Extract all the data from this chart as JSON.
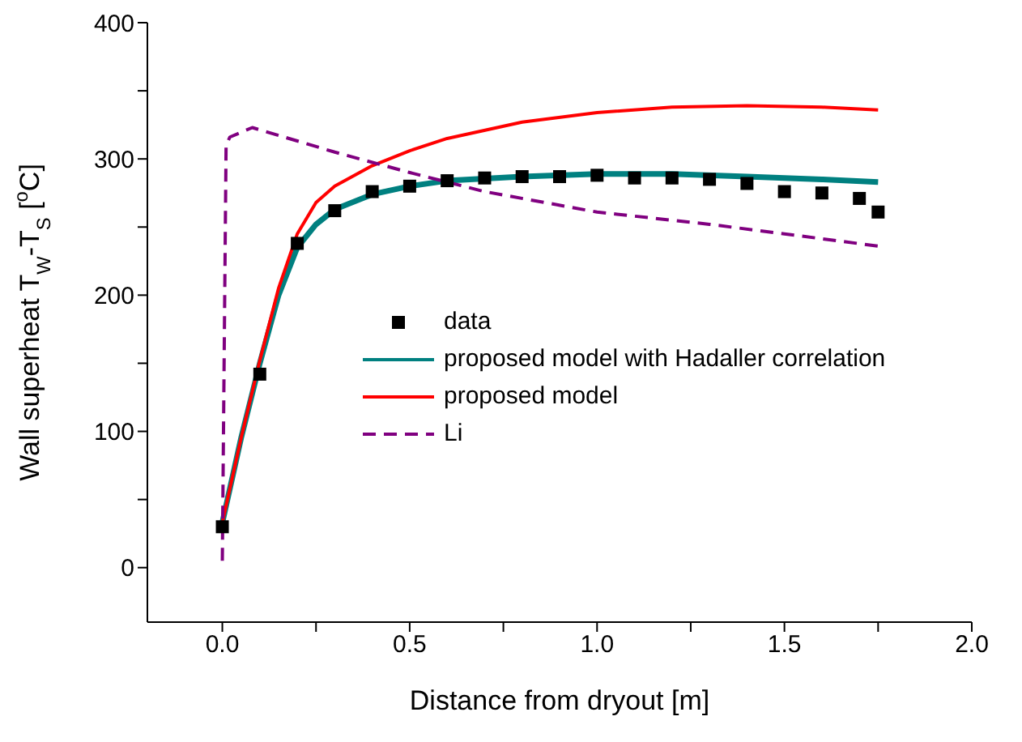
{
  "chart_data": {
    "type": "line",
    "xlabel": "Distance from dryout [m]",
    "ylabel": "Wall superheat T$_{W}$-T$_{S}$ [$^{o}$C]",
    "xlim": [
      -0.2,
      2.0
    ],
    "ylim": [
      -40,
      400
    ],
    "xticks": [
      {
        "value": 0,
        "label": "0.0"
      },
      {
        "value": 0.25,
        "label": null
      },
      {
        "value": 0.5,
        "label": "0.5"
      },
      {
        "value": 0.75,
        "label": null
      },
      {
        "value": 1.0,
        "label": "1.0"
      },
      {
        "value": 1.25,
        "label": null
      },
      {
        "value": 1.5,
        "label": "1.5"
      },
      {
        "value": 1.75,
        "label": null
      },
      {
        "value": 2.0,
        "label": "2.0"
      }
    ],
    "yticks": [
      0,
      {
        "value": 50,
        "label": null
      },
      100,
      {
        "value": 150,
        "label": null
      },
      200,
      {
        "value": 250,
        "label": null
      },
      300,
      {
        "value": 350,
        "label": null
      },
      400
    ],
    "grid": false,
    "legend": "center",
    "series": [
      {
        "name": "data",
        "type": "scatter",
        "marker": "square",
        "color": "#000000",
        "x": [
          0,
          0.1,
          0.2,
          0.3,
          0.4,
          0.5,
          0.6,
          0.7,
          0.8,
          0.9,
          1.0,
          1.1,
          1.2,
          1.3,
          1.4,
          1.5,
          1.6,
          1.7,
          1.75
        ],
        "values": [
          30,
          142,
          238,
          262,
          276,
          280,
          284,
          286,
          287,
          287,
          288,
          286,
          286,
          285,
          282,
          276,
          275,
          271,
          261
        ]
      },
      {
        "name": "proposed model with Hadaller correlation",
        "line_style": "solid",
        "color": "#008080",
        "x": [
          0,
          0.05,
          0.1,
          0.15,
          0.2,
          0.25,
          0.3,
          0.4,
          0.5,
          0.6,
          0.8,
          1.0,
          1.2,
          1.4,
          1.6,
          1.75
        ],
        "values": [
          33,
          95,
          150,
          200,
          235,
          252,
          263,
          274,
          280,
          284,
          287,
          289,
          289,
          287,
          285,
          283
        ]
      },
      {
        "name": "proposed model",
        "line_style": "solid",
        "color": "#ff0000",
        "x": [
          0,
          0.05,
          0.1,
          0.15,
          0.2,
          0.25,
          0.3,
          0.4,
          0.5,
          0.6,
          0.8,
          1.0,
          1.2,
          1.4,
          1.6,
          1.75
        ],
        "values": [
          33,
          95,
          152,
          205,
          245,
          268,
          280,
          295,
          306,
          315,
          327,
          334,
          338,
          339,
          338,
          336
        ]
      },
      {
        "name": "Li",
        "line_style": "dashed",
        "color": "#800080",
        "x": [
          0,
          0.01,
          0.02,
          0.08,
          0.3,
          0.5,
          0.7,
          1.0,
          1.3,
          1.5,
          1.75
        ],
        "values": [
          5,
          310,
          316,
          323,
          305,
          290,
          276,
          261,
          252,
          245,
          236
        ]
      }
    ]
  }
}
